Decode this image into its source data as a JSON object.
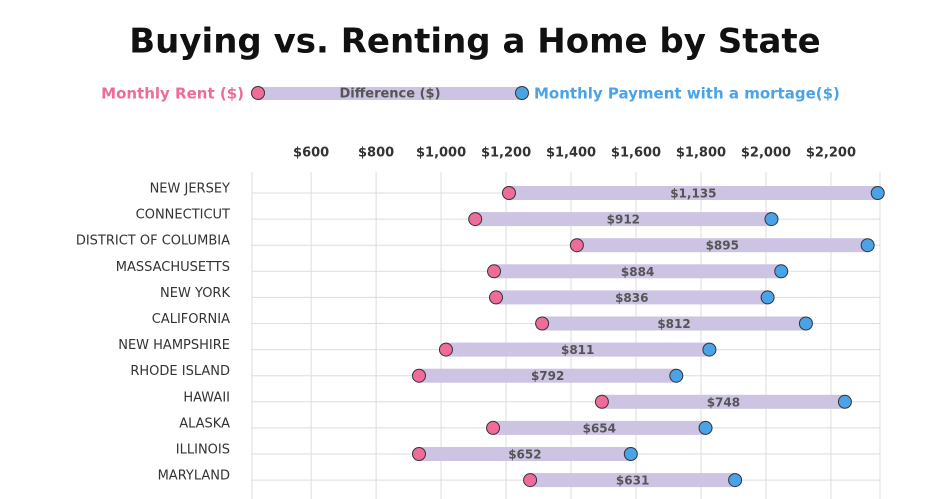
{
  "chart_data": {
    "type": "dumbbell",
    "title": "Buying vs. Renting a Home by State",
    "categories": [
      "NEW JERSEY",
      "CONNECTICUT",
      "DISTRICT OF COLUMBIA",
      "MASSACHUSETTS",
      "NEW YORK",
      "CALIFORNIA",
      "NEW HAMPSHIRE",
      "RHODE ISLAND",
      "HAWAII",
      "ALASKA",
      "ILLINOIS",
      "MARYLAND"
    ],
    "series": [
      {
        "name": "Monthly Rent ($)",
        "color": "#ef6b9a",
        "values": [
          1209,
          1105,
          1418,
          1163,
          1169,
          1311,
          1015,
          932,
          1495,
          1160,
          932,
          1274
        ]
      },
      {
        "name": "Monthly Payment with a mortage($)",
        "color": "#4aa3e6",
        "values": [
          2344,
          2017,
          2313,
          2047,
          2005,
          2123,
          1826,
          1724,
          2243,
          1814,
          1584,
          1905
        ]
      }
    ],
    "difference": {
      "name": "Difference ($)",
      "color": "#cdc3e3",
      "values": [
        1135,
        912,
        895,
        884,
        836,
        812,
        811,
        792,
        748,
        654,
        652,
        631
      ],
      "value_labels": [
        "$1,135",
        "$912",
        "$895",
        "$884",
        "$836",
        "$812",
        "$811",
        "$792",
        "$748",
        "$654",
        "$652",
        "$631"
      ]
    },
    "xlim": [
      418,
      2351
    ],
    "xticks": [
      {
        "value": 600,
        "label": "$600"
      },
      {
        "value": 800,
        "label": "$800"
      },
      {
        "value": 1000,
        "label": "$1,000"
      },
      {
        "value": 1200,
        "label": "$1,200"
      },
      {
        "value": 1400,
        "label": "$1,400"
      },
      {
        "value": 1600,
        "label": "$1,600"
      },
      {
        "value": 1800,
        "label": "$1,800"
      },
      {
        "value": 2000,
        "label": "$2,000"
      },
      {
        "value": 2200,
        "label": "$2,200"
      }
    ],
    "grid": true
  }
}
